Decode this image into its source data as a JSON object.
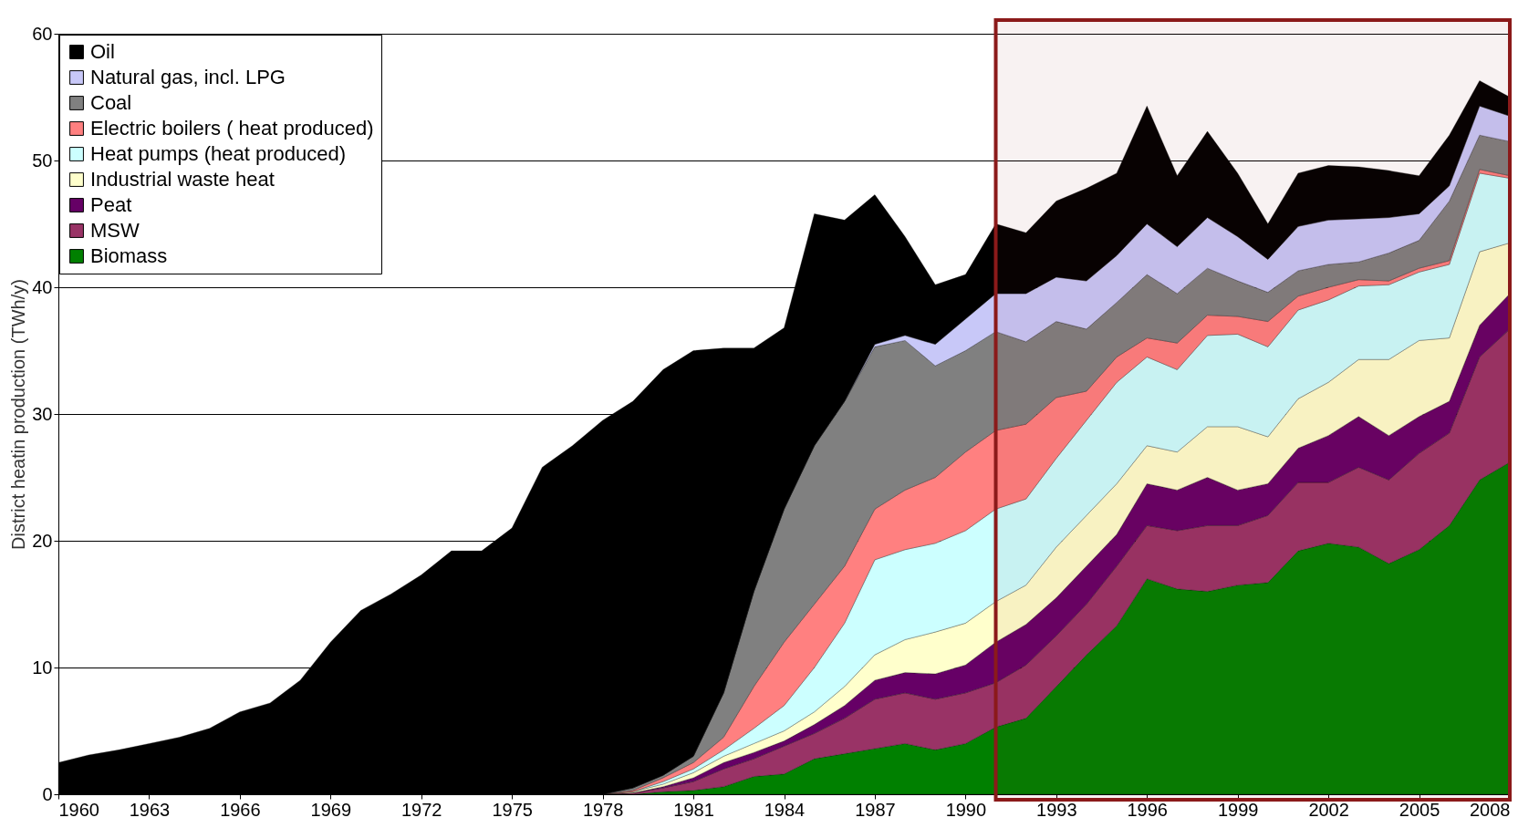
{
  "chart_data": {
    "type": "area",
    "stacked": true,
    "ylabel": "District heatin production (TWh/y)",
    "x": [
      1960,
      1961,
      1962,
      1963,
      1964,
      1965,
      1966,
      1967,
      1968,
      1969,
      1970,
      1971,
      1972,
      1973,
      1974,
      1975,
      1976,
      1977,
      1978,
      1979,
      1980,
      1981,
      1982,
      1983,
      1984,
      1985,
      1986,
      1987,
      1988,
      1989,
      1990,
      1991,
      1992,
      1993,
      1994,
      1995,
      1996,
      1997,
      1998,
      1999,
      2000,
      2001,
      2002,
      2003,
      2004,
      2005,
      2006,
      2007,
      2008
    ],
    "xlim": [
      1960,
      2008
    ],
    "xticks": [
      1960,
      1963,
      1966,
      1969,
      1972,
      1975,
      1978,
      1981,
      1984,
      1987,
      1990,
      1993,
      1996,
      1999,
      2002,
      2005,
      2008
    ],
    "ylim": [
      0,
      60
    ],
    "yticks": [
      0,
      10,
      20,
      30,
      40,
      50,
      60
    ],
    "grid": "y",
    "legend": "top left",
    "series": [
      {
        "name": "Biomass",
        "color": "#008000",
        "values": [
          0,
          0,
          0,
          0,
          0,
          0,
          0,
          0,
          0,
          0,
          0,
          0,
          0,
          0,
          0,
          0,
          0,
          0,
          0,
          0,
          0.2,
          0.3,
          0.6,
          1.4,
          1.6,
          2.8,
          3.2,
          3.6,
          4.0,
          3.5,
          4.0,
          5.3,
          6.0,
          8.5,
          11.0,
          13.3,
          17.0,
          16.2,
          16.0,
          16.5,
          16.7,
          19.2,
          19.8,
          19.5,
          18.2,
          19.3,
          21.2,
          24.8,
          26.2
        ]
      },
      {
        "name": "MSW",
        "color": "#993366",
        "values": [
          0,
          0,
          0,
          0,
          0,
          0,
          0,
          0,
          0,
          0,
          0,
          0,
          0,
          0,
          0,
          0,
          0,
          0,
          0,
          0.1,
          0.3,
          0.7,
          1.4,
          1.4,
          2.2,
          2.0,
          2.8,
          3.9,
          4.0,
          4.0,
          4.0,
          3.5,
          4.2,
          4.0,
          4.0,
          4.7,
          4.2,
          4.6,
          5.2,
          4.7,
          5.3,
          5.4,
          4.8,
          6.3,
          6.6,
          7.6,
          7.3,
          9.7,
          10.5
        ]
      },
      {
        "name": "Peat",
        "color": "#660066",
        "values": [
          0,
          0,
          0,
          0,
          0,
          0,
          0,
          0,
          0,
          0,
          0,
          0,
          0,
          0,
          0,
          0,
          0,
          0,
          0,
          0,
          0.1,
          0.3,
          0.5,
          0.5,
          0.4,
          0.7,
          1.0,
          1.5,
          1.6,
          2.0,
          2.2,
          3.2,
          3.2,
          3.0,
          3.0,
          2.5,
          3.3,
          3.2,
          3.8,
          2.8,
          2.5,
          2.7,
          3.7,
          4.0,
          3.5,
          2.9,
          2.5,
          2.5,
          2.8
        ]
      },
      {
        "name": "Industrial waste heat",
        "color": "#ffffcc",
        "values": [
          0,
          0,
          0,
          0,
          0,
          0,
          0,
          0,
          0,
          0,
          0,
          0,
          0,
          0,
          0,
          0,
          0,
          0,
          0,
          0.1,
          0.2,
          0.4,
          0.5,
          0.7,
          0.8,
          1.0,
          1.5,
          2.0,
          2.6,
          3.3,
          3.3,
          3.2,
          3.1,
          4.0,
          4.0,
          4.0,
          3.0,
          3.0,
          4.0,
          5.0,
          3.7,
          3.9,
          4.2,
          4.5,
          6.0,
          6.0,
          5.0,
          5.8,
          4.0
        ]
      },
      {
        "name": "Heat pumps (heat produced)",
        "color": "#ccffff",
        "values": [
          0,
          0,
          0,
          0,
          0,
          0,
          0,
          0,
          0,
          0,
          0,
          0,
          0,
          0,
          0,
          0,
          0,
          0,
          0,
          0,
          0.2,
          0.3,
          0.5,
          1.2,
          2.0,
          3.5,
          5.0,
          7.5,
          7.1,
          7.0,
          7.3,
          7.3,
          6.8,
          7.0,
          7.5,
          8.0,
          7.0,
          6.5,
          7.2,
          7.3,
          7.1,
          7.0,
          6.5,
          5.8,
          5.9,
          5.4,
          5.8,
          6.2,
          5.1
        ]
      },
      {
        "name": "Electric boilers ( heat produced)",
        "color": "#ff8080",
        "values": [
          0,
          0,
          0,
          0,
          0,
          0,
          0,
          0,
          0,
          0,
          0,
          0,
          0,
          0,
          0,
          0,
          0,
          0,
          0,
          0.1,
          0.3,
          0.5,
          1.0,
          3.3,
          5.0,
          5.0,
          4.5,
          4.0,
          4.7,
          5.2,
          6.2,
          6.2,
          5.9,
          4.8,
          2.3,
          2.0,
          1.5,
          2.1,
          1.6,
          1.4,
          2.0,
          1.1,
          1.0,
          0.5,
          0.3,
          0.3,
          0.3,
          0.3,
          0.2
        ]
      },
      {
        "name": "Coal",
        "color": "#808080",
        "values": [
          0,
          0,
          0,
          0,
          0,
          0,
          0,
          0,
          0,
          0,
          0,
          0,
          0,
          0,
          0,
          0,
          0,
          0,
          0,
          0.2,
          0.2,
          0.5,
          3.5,
          7.5,
          10.5,
          12.5,
          13.0,
          12.8,
          11.8,
          8.8,
          8.0,
          7.8,
          6.5,
          6.0,
          4.9,
          4.3,
          5.0,
          3.9,
          3.7,
          2.8,
          2.3,
          2.0,
          1.8,
          1.4,
          2.2,
          2.2,
          4.7,
          2.7,
          2.7
        ]
      },
      {
        "name": "Natural gas, incl. LPG",
        "color": "#c8c8f8",
        "values": [
          0,
          0,
          0,
          0,
          0,
          0,
          0,
          0,
          0,
          0,
          0,
          0,
          0,
          0,
          0,
          0,
          0,
          0,
          0,
          0,
          0,
          0,
          0,
          0,
          0,
          0,
          0,
          0.2,
          0.4,
          1.7,
          2.5,
          3.0,
          3.8,
          3.5,
          3.8,
          3.7,
          4.0,
          3.7,
          4.0,
          3.5,
          2.6,
          3.5,
          3.5,
          3.4,
          2.8,
          2.1,
          1.2,
          2.3,
          2.0
        ]
      },
      {
        "name": "Oil",
        "color": "#000000",
        "values": [
          2.5,
          3.1,
          3.5,
          4.0,
          4.5,
          5.2,
          6.5,
          7.2,
          9.0,
          12.0,
          14.5,
          15.8,
          17.3,
          19.2,
          19.2,
          21.0,
          25.8,
          27.5,
          29.5,
          30.5,
          32.0,
          32.0,
          27.2,
          19.2,
          14.3,
          18.3,
          14.3,
          11.8,
          7.8,
          4.7,
          3.5,
          5.5,
          4.8,
          6.0,
          7.3,
          6.5,
          9.3,
          5.6,
          6.8,
          5.0,
          2.8,
          4.2,
          4.3,
          4.1,
          3.7,
          3.0,
          4.0,
          2.0,
          1.5
        ]
      }
    ],
    "bands": [
      {
        "axis": "x",
        "from": 1991,
        "to": 2008,
        "color": "#8b1a1a"
      }
    ]
  }
}
